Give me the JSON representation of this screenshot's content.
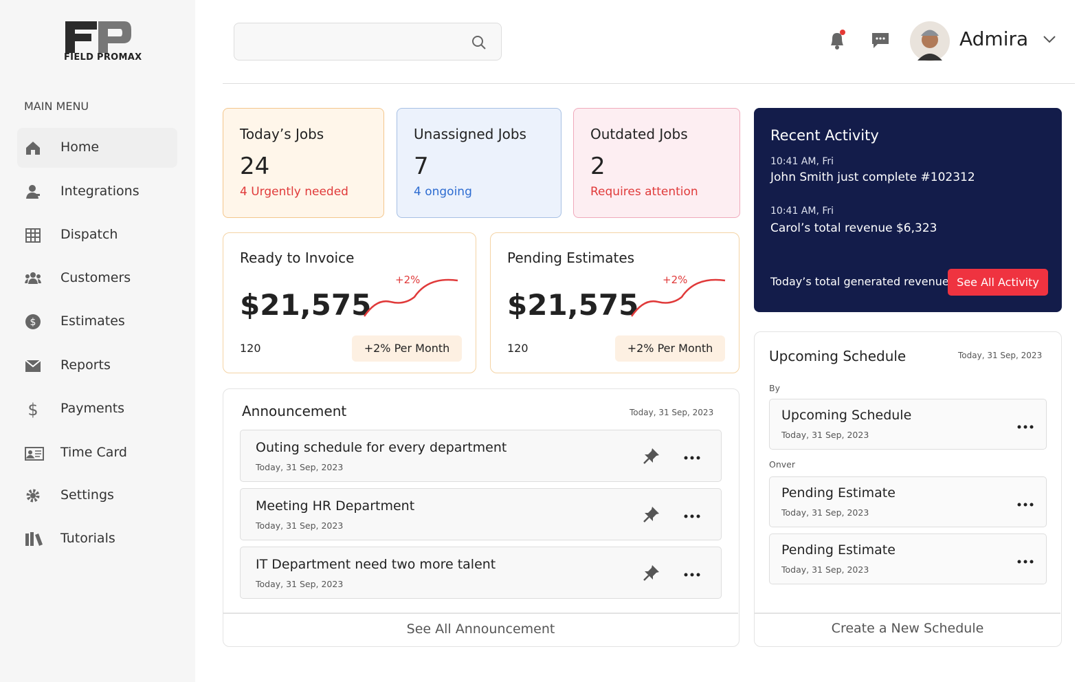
{
  "brand": {
    "name": "FIELD PROMAX"
  },
  "menu": {
    "heading": "MAIN MENU",
    "items": [
      "Home",
      "Integrations",
      "Dispatch",
      "Customers",
      "Estimates",
      "Reports",
      "Payments",
      "Time Card",
      "Settings",
      "Tutorials"
    ]
  },
  "header": {
    "user": "Admira"
  },
  "stats": [
    {
      "title": "Today’s Jobs",
      "value": "24",
      "note": "4 Urgently needed"
    },
    {
      "title": "Unassigned Jobs",
      "value": "7",
      "note": "4 ongoing"
    },
    {
      "title": "Outdated Jobs",
      "value": "2",
      "note": "Requires attention"
    }
  ],
  "revenue": [
    {
      "title": "Ready to Invoice",
      "amount": "$21,575",
      "change": "+2%",
      "count": "120",
      "badge": "+2% Per Month"
    },
    {
      "title": "Pending Estimates",
      "amount": "$21,575",
      "change": "+2%",
      "count": "120",
      "badge": "+2% Per Month"
    }
  ],
  "activity": {
    "title": "Recent Activity",
    "items": [
      {
        "time": "10:41 AM, Fri",
        "text": "John Smith just complete #102312"
      },
      {
        "time": "10:41 AM, Fri",
        "text": "Carol’s total revenue $6,323"
      }
    ],
    "footer": "Today’s total generated revenue",
    "button": "See All Activity"
  },
  "announcement": {
    "title": "Announcement",
    "date": "Today, 31 Sep, 2023",
    "items": [
      {
        "title": "Outing schedule for every department",
        "date": "Today, 31 Sep, 2023"
      },
      {
        "title": "Meeting HR Department",
        "date": "Today, 31 Sep, 2023"
      },
      {
        "title": "IT Department need two more talent",
        "date": "Today, 31 Sep, 2023"
      }
    ],
    "footer": "See All Announcement"
  },
  "schedule": {
    "title": "Upcoming Schedule",
    "date": "Today, 31 Sep, 2023",
    "groups": [
      {
        "label": "By",
        "items": [
          {
            "title": "Upcoming Schedule",
            "date": "Today, 31 Sep, 2023"
          }
        ]
      },
      {
        "label": "Onver",
        "items": [
          {
            "title": "Pending Estimate",
            "date": "Today, 31 Sep, 2023"
          },
          {
            "title": "Pending Estimate",
            "date": "Today, 31 Sep, 2023"
          }
        ]
      }
    ],
    "footer": "Create a New Schedule"
  }
}
